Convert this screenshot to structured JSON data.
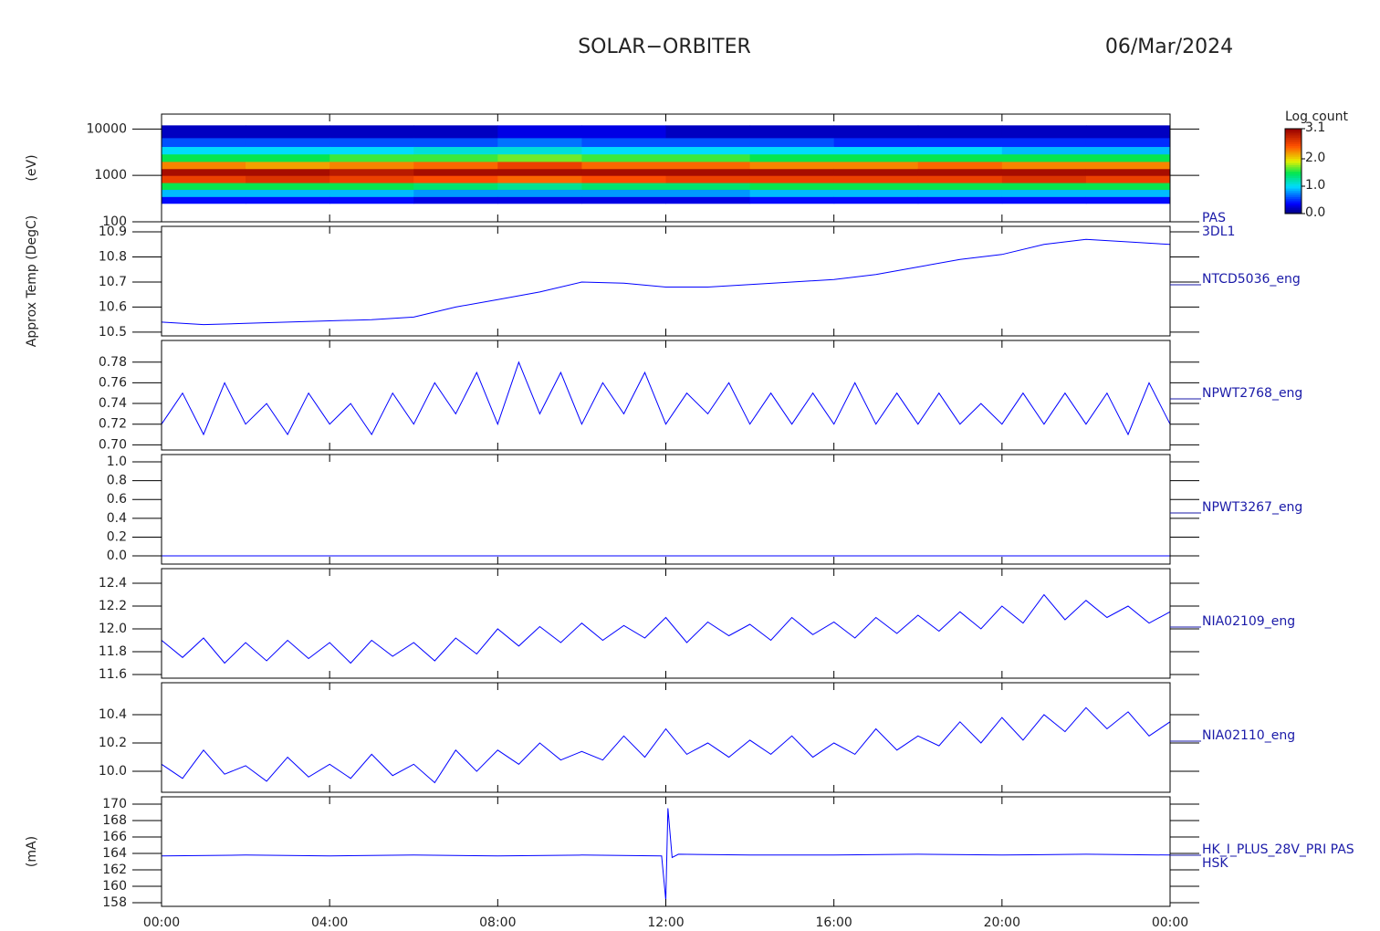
{
  "title": "SOLAR−ORBITER",
  "date": "06/Mar/2024",
  "time_axis": {
    "xlim": [
      0,
      24
    ],
    "xticks": [
      {
        "value": 0,
        "label": "00:00"
      },
      {
        "value": 4,
        "label": "04:00"
      },
      {
        "value": 8,
        "label": "08:00"
      },
      {
        "value": 12,
        "label": "12:00"
      },
      {
        "value": 16,
        "label": "16:00"
      },
      {
        "value": 20,
        "label": "20:00"
      },
      {
        "value": 24,
        "label": "00:00"
      }
    ]
  },
  "chart_data": [
    {
      "type": "heatmap",
      "ylabel": "(eV)",
      "log": true,
      "ylim": [
        100,
        21000
      ],
      "yticks": [
        100,
        1000,
        10000
      ],
      "labels": [
        "PAS",
        "3DL1"
      ],
      "x": [
        0,
        2,
        4,
        6,
        8,
        10,
        12,
        14,
        16,
        18,
        20,
        22,
        24
      ],
      "y": [
        250,
        350,
        500,
        700,
        1000,
        1400,
        2000,
        2900,
        4200,
        6500,
        12000
      ],
      "z": [
        [
          0.4,
          0.9,
          1.5,
          2.6,
          3.0,
          2.3,
          1.5,
          1.0,
          0.6,
          0.2
        ],
        [
          0.4,
          0.9,
          1.5,
          2.7,
          3.0,
          2.2,
          1.5,
          1.0,
          0.6,
          0.2
        ],
        [
          0.4,
          0.9,
          1.5,
          2.6,
          2.9,
          2.3,
          1.6,
          1.0,
          0.6,
          0.2
        ],
        [
          0.3,
          0.8,
          1.4,
          2.5,
          3.0,
          2.4,
          1.6,
          1.1,
          0.6,
          0.2
        ],
        [
          0.3,
          0.8,
          1.3,
          2.4,
          3.0,
          2.6,
          1.7,
          1.1,
          0.7,
          0.3
        ],
        [
          0.3,
          0.8,
          1.4,
          2.5,
          3.0,
          2.4,
          1.6,
          1.0,
          0.6,
          0.3
        ],
        [
          0.3,
          0.8,
          1.4,
          2.6,
          3.0,
          2.4,
          1.6,
          1.0,
          0.6,
          0.2
        ],
        [
          0.4,
          0.9,
          1.5,
          2.6,
          3.0,
          2.3,
          1.5,
          1.0,
          0.6,
          0.2
        ],
        [
          0.4,
          0.9,
          1.5,
          2.6,
          3.0,
          2.3,
          1.5,
          1.0,
          0.5,
          0.2
        ],
        [
          0.4,
          0.9,
          1.5,
          2.6,
          3.0,
          2.4,
          1.5,
          1.0,
          0.5,
          0.2
        ],
        [
          0.4,
          0.9,
          1.5,
          2.7,
          3.0,
          2.3,
          1.5,
          0.9,
          0.5,
          0.2
        ],
        [
          0.4,
          0.9,
          1.5,
          2.6,
          3.0,
          2.3,
          1.5,
          0.9,
          0.5,
          0.2
        ]
      ],
      "colorbar": {
        "label": "Log count",
        "lim": [
          0,
          3.1
        ],
        "ticks": [
          {
            "value": 0,
            "label": "0.0"
          },
          {
            "value": 1,
            "label": "1.0"
          },
          {
            "value": 2,
            "label": "2.0"
          },
          3.1
        ]
      }
    },
    {
      "type": "line",
      "ylabel": "Approx Temp (DegC)",
      "color": "#0000ff",
      "ylim": [
        10.485,
        10.922
      ],
      "yticks": [
        10.5,
        10.6,
        10.7,
        10.8,
        10.9
      ],
      "labels": [
        "NTCD5036_eng"
      ],
      "x": [
        0,
        1,
        2,
        3,
        4,
        5,
        6,
        7,
        8,
        9,
        10,
        11,
        12,
        13,
        14,
        15,
        16,
        17,
        18,
        19,
        20,
        21,
        22,
        23,
        24
      ],
      "values": [
        10.54,
        10.53,
        10.535,
        10.54,
        10.545,
        10.55,
        10.56,
        10.6,
        10.63,
        10.66,
        10.7,
        10.695,
        10.68,
        10.68,
        10.69,
        10.7,
        10.71,
        10.73,
        10.76,
        10.79,
        10.81,
        10.85,
        10.87,
        10.86,
        10.85
      ]
    },
    {
      "type": "line",
      "color": "#0000ff",
      "ylim": [
        0.695,
        0.801
      ],
      "yticks": [
        {
          "value": 0.7,
          "label": "0.70"
        },
        0.72,
        0.74,
        0.76,
        0.78
      ],
      "labels": [
        "NPWT2768_eng"
      ],
      "x": [
        0,
        0.5,
        1,
        1.5,
        2,
        2.5,
        3,
        3.5,
        4,
        4.5,
        5,
        5.5,
        6,
        6.5,
        7,
        7.5,
        8,
        8.5,
        9,
        9.5,
        10,
        10.5,
        11,
        11.5,
        12,
        12.5,
        13,
        13.5,
        14,
        14.5,
        15,
        15.5,
        16,
        16.5,
        17,
        17.5,
        18,
        18.5,
        19,
        19.5,
        20,
        20.5,
        21,
        21.5,
        22,
        22.5,
        23,
        23.5,
        24
      ],
      "values": [
        0.72,
        0.75,
        0.71,
        0.76,
        0.72,
        0.74,
        0.71,
        0.75,
        0.72,
        0.74,
        0.71,
        0.75,
        0.72,
        0.76,
        0.73,
        0.77,
        0.72,
        0.78,
        0.73,
        0.77,
        0.72,
        0.76,
        0.73,
        0.77,
        0.72,
        0.75,
        0.73,
        0.76,
        0.72,
        0.75,
        0.72,
        0.75,
        0.72,
        0.76,
        0.72,
        0.75,
        0.72,
        0.75,
        0.72,
        0.74,
        0.72,
        0.75,
        0.72,
        0.75,
        0.72,
        0.75,
        0.71,
        0.76,
        0.72
      ]
    },
    {
      "type": "line",
      "color": "#0000ff",
      "ylim": [
        -0.087,
        1.078
      ],
      "yticks": [
        {
          "value": 0,
          "label": "0.0"
        },
        0.2,
        0.4,
        0.6,
        0.8,
        {
          "value": 1,
          "label": "1.0"
        }
      ],
      "labels": [
        "NPWT3267_eng"
      ],
      "x": [
        0,
        2,
        4,
        6,
        8,
        10,
        12,
        14,
        16,
        18,
        20,
        22,
        24
      ],
      "values": [
        0,
        0,
        0,
        0,
        0,
        0,
        0,
        0,
        0,
        0,
        0,
        0,
        0
      ]
    },
    {
      "type": "line",
      "color": "#0000ff",
      "ylim": [
        11.568,
        12.528
      ],
      "yticks": [
        11.6,
        11.8,
        {
          "value": 12,
          "label": "12.0"
        },
        12.2,
        12.4
      ],
      "labels": [
        "NIA02109_eng"
      ],
      "x": [
        0,
        0.5,
        1,
        1.5,
        2,
        2.5,
        3,
        3.5,
        4,
        4.5,
        5,
        5.5,
        6,
        6.5,
        7,
        7.5,
        8,
        8.5,
        9,
        9.5,
        10,
        10.5,
        11,
        11.5,
        12,
        12.5,
        13,
        13.5,
        14,
        14.5,
        15,
        15.5,
        16,
        16.5,
        17,
        17.5,
        18,
        18.5,
        19,
        19.5,
        20,
        20.5,
        21,
        21.5,
        22,
        22.5,
        23,
        23.5,
        24
      ],
      "values": [
        11.9,
        11.75,
        11.92,
        11.7,
        11.88,
        11.72,
        11.9,
        11.74,
        11.88,
        11.7,
        11.9,
        11.76,
        11.88,
        11.72,
        11.92,
        11.78,
        12.0,
        11.85,
        12.02,
        11.88,
        12.05,
        11.9,
        12.03,
        11.92,
        12.1,
        11.88,
        12.06,
        11.94,
        12.04,
        11.9,
        12.1,
        11.95,
        12.06,
        11.92,
        12.1,
        11.96,
        12.12,
        11.98,
        12.15,
        12.0,
        12.2,
        12.05,
        12.3,
        12.08,
        12.25,
        12.1,
        12.2,
        12.05,
        12.15
      ]
    },
    {
      "type": "line",
      "color": "#0000ff",
      "ylim": [
        9.852,
        10.626
      ],
      "yticks": [
        {
          "value": 10,
          "label": "10.0"
        },
        10.2,
        10.4
      ],
      "labels": [
        "NIA02110_eng"
      ],
      "x": [
        0,
        0.5,
        1,
        1.5,
        2,
        2.5,
        3,
        3.5,
        4,
        4.5,
        5,
        5.5,
        6,
        6.5,
        7,
        7.5,
        8,
        8.5,
        9,
        9.5,
        10,
        10.5,
        11,
        11.5,
        12,
        12.5,
        13,
        13.5,
        14,
        14.5,
        15,
        15.5,
        16,
        16.5,
        17,
        17.5,
        18,
        18.5,
        19,
        19.5,
        20,
        20.5,
        21,
        21.5,
        22,
        22.5,
        23,
        23.5,
        24
      ],
      "values": [
        10.05,
        9.95,
        10.15,
        9.98,
        10.04,
        9.93,
        10.1,
        9.96,
        10.05,
        9.95,
        10.12,
        9.97,
        10.05,
        9.92,
        10.15,
        10.0,
        10.15,
        10.05,
        10.2,
        10.08,
        10.14,
        10.08,
        10.25,
        10.1,
        10.3,
        10.12,
        10.2,
        10.1,
        10.22,
        10.12,
        10.25,
        10.1,
        10.2,
        10.12,
        10.3,
        10.15,
        10.25,
        10.18,
        10.35,
        10.2,
        10.38,
        10.22,
        10.4,
        10.28,
        10.45,
        10.3,
        10.42,
        10.25,
        10.35
      ]
    },
    {
      "type": "line",
      "ylabel": "(mA)",
      "color": "#0000ff",
      "ylim": [
        157.56,
        170.89
      ],
      "yticks": [
        158,
        160,
        162,
        164,
        166,
        168,
        170
      ],
      "labels": [
        "HK_I_PLUS_28V_PRI PAS",
        "HSK"
      ],
      "x": [
        0,
        2,
        4,
        6,
        8,
        10,
        11.9,
        12.0,
        12.05,
        12.15,
        12.3,
        14,
        16,
        18,
        20,
        22,
        24
      ],
      "values": [
        163.7,
        163.8,
        163.7,
        163.8,
        163.7,
        163.8,
        163.7,
        158.3,
        169.5,
        163.5,
        163.9,
        163.8,
        163.8,
        163.9,
        163.8,
        163.9,
        163.8
      ]
    }
  ]
}
